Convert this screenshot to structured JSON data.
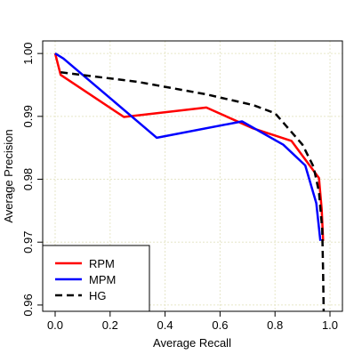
{
  "chart_data": {
    "type": "line",
    "title": "",
    "xlabel": "Average Recall",
    "ylabel": "Average Precision",
    "xlim": [
      0,
      1
    ],
    "ylim": [
      0.959,
      1.002
    ],
    "x_ticks": [
      "0.0",
      "0.2",
      "0.4",
      "0.6",
      "0.8",
      "1.0"
    ],
    "y_ticks": [
      "0.96",
      "0.97",
      "0.98",
      "0.99",
      "1.00"
    ],
    "grid": true,
    "legend_position": "bottom-left",
    "series": [
      {
        "name": "RPM",
        "color": "#ff0000",
        "dash": "solid",
        "points": [
          [
            0.0,
            1.0
          ],
          [
            0.02,
            0.9966
          ],
          [
            0.25,
            0.9899
          ],
          [
            0.55,
            0.9914
          ],
          [
            0.72,
            0.9881
          ],
          [
            0.86,
            0.9861
          ],
          [
            0.96,
            0.9802
          ],
          [
            0.97,
            0.9752
          ],
          [
            0.975,
            0.9702
          ]
        ]
      },
      {
        "name": "MPM",
        "color": "#0000ff",
        "dash": "solid",
        "points": [
          [
            0.0,
            1.0
          ],
          [
            0.03,
            0.9992
          ],
          [
            0.37,
            0.9866
          ],
          [
            0.68,
            0.9892
          ],
          [
            0.83,
            0.9855
          ],
          [
            0.91,
            0.9822
          ],
          [
            0.95,
            0.9762
          ],
          [
            0.965,
            0.9702
          ]
        ]
      },
      {
        "name": "HG",
        "color": "#000000",
        "dash": "dashed",
        "points": [
          [
            0.02,
            0.997
          ],
          [
            0.3,
            0.9955
          ],
          [
            0.55,
            0.9935
          ],
          [
            0.72,
            0.9918
          ],
          [
            0.8,
            0.9905
          ],
          [
            0.84,
            0.9885
          ],
          [
            0.9,
            0.9855
          ],
          [
            0.94,
            0.982
          ],
          [
            0.96,
            0.978
          ],
          [
            0.972,
            0.972
          ],
          [
            0.975,
            0.965
          ],
          [
            0.977,
            0.959
          ]
        ]
      }
    ]
  }
}
